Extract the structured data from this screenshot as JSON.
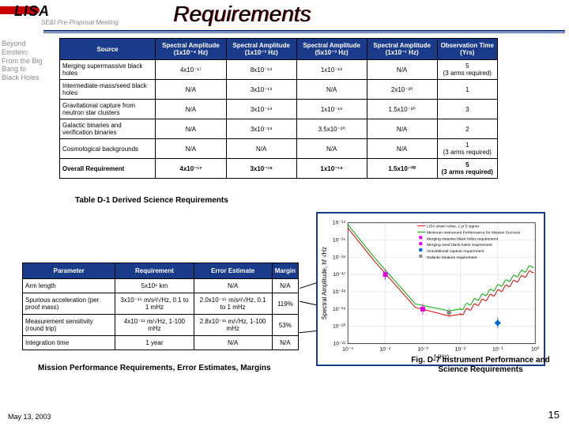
{
  "header": {
    "logo_text": "LISA",
    "logo_sub": "SE&I Pre-Proposal Meeting",
    "title": "Requirements"
  },
  "sideblurb": "Beyond Einstein: From the Big Bang to Black Holes",
  "table1": {
    "headers": [
      "Source",
      "Spectral Amplitude (1x10⁻⁴ Hz)",
      "Spectral Amplitude (1x10⁻³ Hz)",
      "Spectral Amplitude (5x10⁻³ Hz)",
      "Spectral Amplitude (1x10⁻¹ Hz)",
      "Observation Time (Yrs)"
    ],
    "rows": [
      {
        "src": "Merging supermassive black holes",
        "c": [
          "4x10⁻¹⁷",
          "8x10⁻¹⁹",
          "1x10⁻¹⁹",
          "N/A",
          "5\n(3 arms required)"
        ]
      },
      {
        "src": "Intermediate-mass/seed black holes",
        "c": [
          "N/A",
          "3x10⁻¹⁹",
          "N/A",
          "2x10⁻²⁰",
          "1"
        ]
      },
      {
        "src": "Gravitational capture from neutron star clusters",
        "c": [
          "N/A",
          "3x10⁻¹⁹",
          "1x10⁻¹⁹",
          "1.5x10⁻²⁰",
          "3"
        ]
      },
      {
        "src": "Galactic binaries and verification binaries",
        "c": [
          "N/A",
          "3x10⁻¹⁹",
          "3.5x10⁻²⁰",
          "N/A",
          "2"
        ]
      },
      {
        "src": "Cosmological backgrounds",
        "c": [
          "N/A",
          "N/A",
          "N/A",
          "N/A",
          "1\n(3 arms required)"
        ]
      }
    ],
    "overall": {
      "src": "Overall Requirement",
      "c": [
        "4x10⁻¹⁷",
        "3x10⁻¹⁹",
        "1x10⁻¹⁹",
        "1.5x10⁻²⁰",
        "5\n(3 arms required)"
      ]
    }
  },
  "caption1": "Table D-1 Derived Science Requirements",
  "table2": {
    "headers": [
      "Parameter",
      "Requirement",
      "Error Estimate",
      "Margin"
    ],
    "rows": [
      {
        "p": "Arm length",
        "c": [
          "5x10⁶ km",
          "N/A",
          "N/A"
        ]
      },
      {
        "p": "Spurious acceleration (per proof mass)",
        "c": [
          "3x10⁻¹⁵ m/s²/√Hz, 0.1 to 1 mHz",
          "2.0x10⁻¹⁵ m/s²/√Hz, 0.1 to 1 mHz",
          "119%"
        ]
      },
      {
        "p": "Measurement sensitivity (round trip)",
        "c": [
          "4x10⁻¹¹ m/√Hz, 1-100 mHz",
          "2.8x10⁻¹¹ m/√Hz, 1-100 mHz",
          "53%"
        ]
      },
      {
        "p": "Integration time",
        "c": [
          "1 year",
          "N/A",
          "N/A"
        ]
      }
    ]
  },
  "caption2": "Mission Performance Requirements, Error Estimates, Margins",
  "chart": {
    "type": "line",
    "xlabel": "f (Hz)",
    "ylabel": "Spectral Amplitude, hf √Hz",
    "xlim": [
      1e-05,
      1
    ],
    "ylim": [
      1e-21,
      1e-14
    ],
    "xticks": [
      "10⁻⁵",
      "10⁻⁴",
      "10⁻³",
      "10⁻²",
      "10⁻¹",
      "10⁰"
    ],
    "yticks": [
      "10⁻²¹",
      "10⁻²⁰",
      "10⁻¹⁹",
      "10⁻¹⁸",
      "10⁻¹⁷",
      "10⁻¹⁶",
      "10⁻¹⁵",
      "10⁻¹⁴"
    ],
    "legend": [
      {
        "label": "LISA strain noise, 1 yr 5 sigma",
        "color": "#d00"
      },
      {
        "label": "Minimum Instrument Performance for Mission Success",
        "color": "#0a0"
      },
      {
        "label": "Merging massive black holes requirement",
        "marker": "square",
        "color": "#d0d"
      },
      {
        "label": "Merging seed black holes requirement",
        "marker": "square",
        "color": "#d0d"
      },
      {
        "label": "Gravitational capture requirement",
        "marker": "diamond",
        "color": "#06c"
      },
      {
        "label": "Galactic binaries requirement",
        "marker": "circle",
        "color": "#888"
      }
    ],
    "curve_red": [
      [
        -5,
        -14.3
      ],
      [
        -4.3,
        -16.2
      ],
      [
        -3.2,
        -18.9
      ],
      [
        -2.3,
        -19.4
      ],
      [
        -2.0,
        -19.3
      ],
      [
        -1.5,
        -18.6
      ],
      [
        -0.5,
        -17.2
      ],
      [
        0,
        -16.5
      ]
    ],
    "curve_green": [
      [
        -5,
        -14.1
      ],
      [
        -4.3,
        -16.0
      ],
      [
        -3.2,
        -18.7
      ],
      [
        -2.3,
        -19.1
      ],
      [
        -2.0,
        -19.0
      ],
      [
        -1.5,
        -18.3
      ],
      [
        -0.5,
        -16.9
      ],
      [
        0,
        -16.2
      ]
    ],
    "markers": [
      {
        "x": -4,
        "y": -17,
        "color": "#d0d",
        "shape": "square"
      },
      {
        "x": -3,
        "y": -19,
        "color": "#d0d",
        "shape": "square"
      },
      {
        "x": -2.3,
        "y": -19.2,
        "color": "#888",
        "shape": "circle"
      },
      {
        "x": -1,
        "y": -19.8,
        "color": "#06c",
        "shape": "diamond"
      }
    ],
    "grid_color": "#e8e8e8",
    "background_color": "#ffffff",
    "label_fontsize": 7
  },
  "caption3": "Fig. D-7 Instrument Performance and Science Requirements",
  "footer": {
    "date": "May 13, 2003",
    "page": "15"
  }
}
